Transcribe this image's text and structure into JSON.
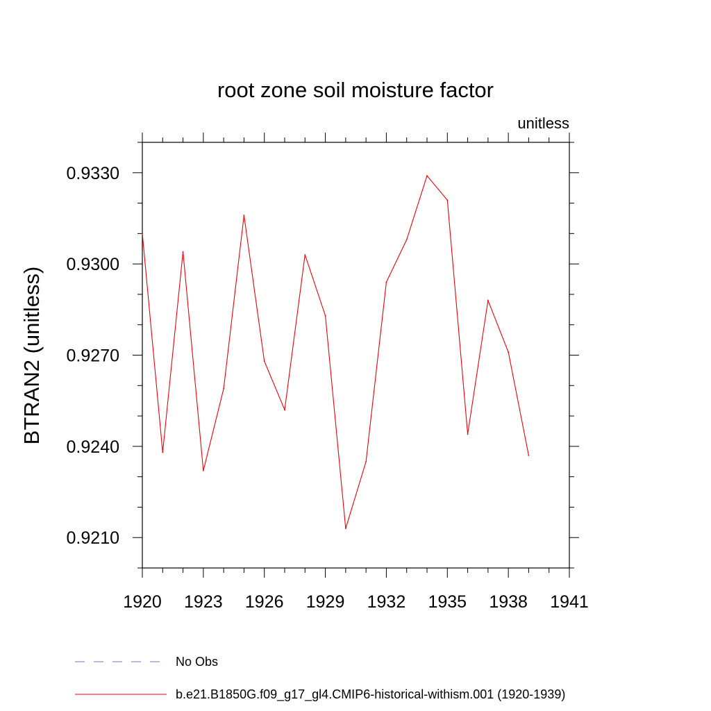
{
  "chart_data": {
    "type": "line",
    "title": "root zone soil moisture factor",
    "subtitle_right": "unitless",
    "ylabel": "BTRAN2  (unitless)",
    "xlabel": "",
    "xlim": [
      1920,
      1941
    ],
    "ylim": [
      0.92,
      0.934
    ],
    "x_ticks": [
      1920,
      1923,
      1926,
      1929,
      1932,
      1935,
      1938,
      1941
    ],
    "x_tick_labels": [
      "1920",
      "1923",
      "1926",
      "1929",
      "1932",
      "1935",
      "1938",
      "1941"
    ],
    "y_ticks": [
      0.921,
      0.924,
      0.927,
      0.93,
      0.933
    ],
    "y_tick_labels": [
      "0.9210",
      "0.9240",
      "0.9270",
      "0.9300",
      "0.9330"
    ],
    "grid": false,
    "legend_position": "bottom",
    "legend": [
      {
        "label": "No Obs",
        "color": "#7a6fc0",
        "dash": "dashed"
      },
      {
        "label": "b.e21.B1850G.f09_g17_gl4.CMIP6-historical-withism.001 (1920-1939)",
        "color": "#e8000b",
        "dash": "solid"
      }
    ],
    "series": [
      {
        "name": "b.e21.B1850G.f09_g17_gl4.CMIP6-historical-withism.001 (1920-1939)",
        "color": "#e8000b",
        "x": [
          1920,
          1921,
          1922,
          1923,
          1924,
          1925,
          1926,
          1927,
          1928,
          1929,
          1930,
          1931,
          1932,
          1933,
          1934,
          1935,
          1936,
          1937,
          1938,
          1939
        ],
        "values": [
          0.931,
          0.9238,
          0.9304,
          0.9232,
          0.9259,
          0.9316,
          0.9268,
          0.9252,
          0.9303,
          0.9283,
          0.9213,
          0.9235,
          0.9294,
          0.9308,
          0.9329,
          0.9321,
          0.9244,
          0.9288,
          0.9271,
          0.9237
        ]
      }
    ]
  }
}
